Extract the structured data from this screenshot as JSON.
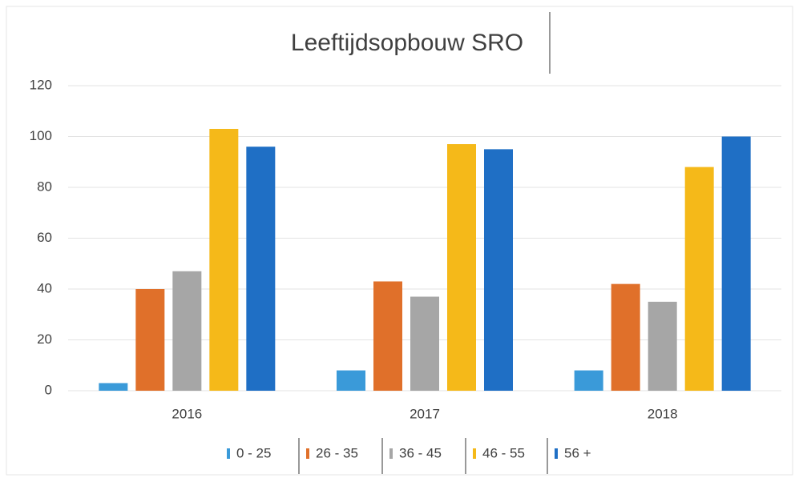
{
  "chart_data": {
    "type": "bar",
    "title": "Leeftijdsopbouw SRO",
    "categories": [
      "2016",
      "2017",
      "2018"
    ],
    "series": [
      {
        "name": "0 - 25",
        "color": "#3a9ad9",
        "values": [
          3,
          8,
          8
        ]
      },
      {
        "name": "26 - 35",
        "color": "#e0702a",
        "values": [
          40,
          43,
          42
        ]
      },
      {
        "name": "36 - 45",
        "color": "#a6a6a6",
        "values": [
          47,
          37,
          35
        ]
      },
      {
        "name": "46 - 55",
        "color": "#f5b919",
        "values": [
          103,
          97,
          88
        ]
      },
      {
        "name": "56 +",
        "color": "#1f6fc5",
        "values": [
          96,
          95,
          100
        ]
      }
    ],
    "ylim": [
      0,
      120
    ],
    "yticks": [
      0,
      20,
      40,
      60,
      80,
      100,
      120
    ],
    "grid": true,
    "legend": "bottom"
  }
}
